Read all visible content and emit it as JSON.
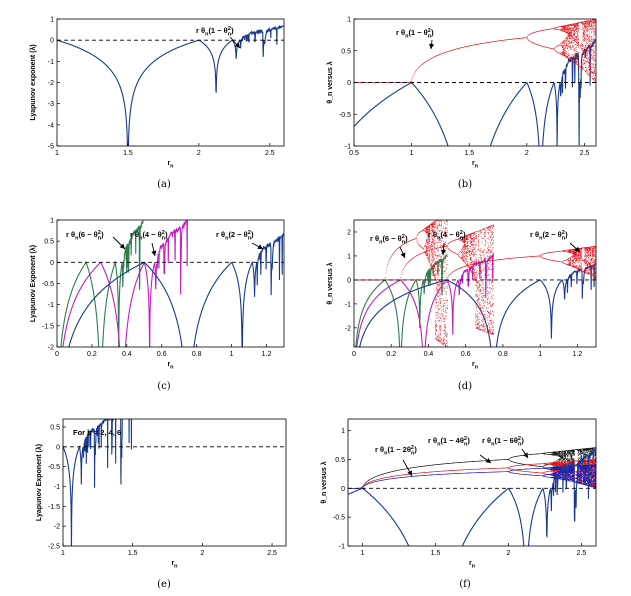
{
  "figure": {
    "panels": [
      {
        "id": "a",
        "caption": "(a)",
        "xlabel": "r",
        "xlabel_sub": "n",
        "ylabel": "Lyapunov exponent (λ)",
        "annotations": [
          {
            "base": "r θ",
            "sub": "n",
            "rest": "(1 − θ",
            "sup": "2",
            "sub2": "n",
            "end": ")"
          }
        ]
      },
      {
        "id": "b",
        "caption": "(b)",
        "xlabel": "r",
        "xlabel_sub": "n",
        "ylabel": "θ_n versus λ",
        "annotations": [
          {
            "base": "r θ",
            "sub": "n",
            "rest": "(1 − θ",
            "sup": "2",
            "sub2": "n",
            "end": ")"
          }
        ]
      },
      {
        "id": "c",
        "caption": "(c)",
        "xlabel": "r",
        "xlabel_sub": "n",
        "ylabel": "Lyapunov Exponent (λ)",
        "annotations": [
          {
            "base": "r θ",
            "sub": "n",
            "rest": "(6 − θ",
            "sup": "2",
            "sub2": "n",
            "end": ")"
          },
          {
            "base": "r θ",
            "sub": "n",
            "rest": "(4 − θ",
            "sup": "2",
            "sub2": "n",
            "end": ")"
          },
          {
            "base": "r θ",
            "sub": "n",
            "rest": "(2 − θ",
            "sup": "2",
            "sub2": "n",
            "end": ")"
          }
        ]
      },
      {
        "id": "d",
        "caption": "(d)",
        "xlabel": "r",
        "xlabel_sub": "n",
        "ylabel": "θ_n versus λ",
        "annotations": [
          {
            "base": "r θ",
            "sub": "n",
            "rest": "(6 − θ",
            "sup": "2",
            "sub2": "n",
            "end": ")"
          },
          {
            "base": "r θ",
            "sub": "n",
            "rest": "(4 − θ",
            "sup": "2",
            "sub2": "n",
            "end": ")"
          },
          {
            "base": "r θ",
            "sub": "n",
            "rest": "(2 − θ",
            "sup": "2",
            "sub2": "n",
            "end": ")"
          }
        ]
      },
      {
        "id": "e",
        "caption": "(e)",
        "xlabel": "r",
        "xlabel_sub": "n",
        "ylabel": "Lyapunov Exponent (λ)",
        "note": "For b = 2, 4, 6",
        "annotations": []
      },
      {
        "id": "f",
        "caption": "(f)",
        "xlabel": "r",
        "xlabel_sub": "n",
        "ylabel": "θ_n versus λ",
        "annotations": [
          {
            "base": "r θ",
            "sub": "n",
            "rest": "(1 − 2θ",
            "sup": "2",
            "sub2": "n",
            "end": ")"
          },
          {
            "base": "r θ",
            "sub": "n",
            "rest": "(1 − 4θ",
            "sup": "2",
            "sub2": "n",
            "end": ")"
          },
          {
            "base": "r θ",
            "sub": "n",
            "rest": "(1 − 6θ",
            "sup": "2",
            "sub2": "n",
            "end": ")"
          }
        ]
      }
    ]
  },
  "chart_data": [
    {
      "panel": "a",
      "type": "line",
      "xlim": [
        1,
        2.6
      ],
      "ylim": [
        -5,
        1
      ],
      "xticks": [
        "1",
        "1.5",
        "2",
        "2.5"
      ],
      "xtick_values": [
        1,
        1.5,
        2,
        2.5
      ],
      "yticks": [
        "1",
        "0",
        "-1",
        "-2",
        "-3",
        "-4",
        "-5"
      ],
      "ytick_values": [
        1,
        0,
        -1,
        -2,
        -3,
        -4,
        -5
      ],
      "reference_line": {
        "y": 0,
        "style": "dashed"
      },
      "series": [
        {
          "map": "r θ(1 − θ²)",
          "b": 1,
          "c": 1,
          "color": "#1a3a8f",
          "kind": "lyapunov"
        }
      ]
    },
    {
      "panel": "b",
      "type": "line",
      "xlim": [
        0.5,
        2.6
      ],
      "ylim": [
        -1,
        1
      ],
      "xticks": [
        "0.5",
        "1",
        "1.5",
        "2",
        "2.5"
      ],
      "xtick_values": [
        0.5,
        1,
        1.5,
        2,
        2.5
      ],
      "yticks": [
        "1",
        "0.5",
        "0",
        "-0.5",
        "-1"
      ],
      "ytick_values": [
        1,
        0.5,
        0,
        -0.5,
        -1
      ],
      "reference_line": {
        "y": 0,
        "style": "dashed"
      },
      "series": [
        {
          "map": "r θ(1 − θ²)",
          "b": 1,
          "c": 1,
          "color": "#1a3a8f",
          "kind": "lyapunov"
        },
        {
          "map": "r θ(1 − θ²)",
          "b": 1,
          "c": 1,
          "color": "#e8101a",
          "kind": "bifurcation"
        }
      ]
    },
    {
      "panel": "c",
      "type": "line",
      "xlim": [
        0,
        1.3
      ],
      "ylim": [
        -2,
        1
      ],
      "xticks": [
        "0",
        "0.2",
        "0.4",
        "0.6",
        "0.8",
        "1",
        "1.2"
      ],
      "xtick_values": [
        0,
        0.2,
        0.4,
        0.6,
        0.8,
        1,
        1.2
      ],
      "yticks": [
        "1",
        "0.5",
        "0",
        "-0.5",
        "-1",
        "-1.5",
        "-2"
      ],
      "ytick_values": [
        1,
        0.5,
        0,
        -0.5,
        -1,
        -1.5,
        -2
      ],
      "reference_line": {
        "y": 0,
        "style": "dashed"
      },
      "series": [
        {
          "map": "r θ(6 − θ²)",
          "b": 6,
          "c": 1,
          "color": "#2e7d4f",
          "kind": "lyapunov"
        },
        {
          "map": "r θ(4 − θ²)",
          "b": 4,
          "c": 1,
          "color": "#c21ec2",
          "kind": "lyapunov"
        },
        {
          "map": "r θ(2 − θ²)",
          "b": 2,
          "c": 1,
          "color": "#1a3a8f",
          "kind": "lyapunov"
        }
      ]
    },
    {
      "panel": "d",
      "type": "line",
      "xlim": [
        0,
        1.3
      ],
      "ylim": [
        -2.8,
        2.5
      ],
      "xticks": [
        "0",
        "0.2",
        "0.4",
        "0.6",
        "0.8",
        "1",
        "1.2"
      ],
      "xtick_values": [
        0,
        0.2,
        0.4,
        0.6,
        0.8,
        1,
        1.2
      ],
      "yticks": [
        "2",
        "1",
        "0",
        "-1",
        "-2"
      ],
      "ytick_values": [
        2,
        1,
        0,
        -1,
        -2
      ],
      "reference_line": {
        "y": 0,
        "style": "dashed"
      },
      "series": [
        {
          "map": "r θ(6 − θ²)",
          "b": 6,
          "c": 1,
          "color": "#2e7d4f",
          "kind": "lyapunov"
        },
        {
          "map": "r θ(4 − θ²)",
          "b": 4,
          "c": 1,
          "color": "#c21ec2",
          "kind": "lyapunov"
        },
        {
          "map": "r θ(2 − θ²)",
          "b": 2,
          "c": 1,
          "color": "#1a3a8f",
          "kind": "lyapunov"
        },
        {
          "map": "r θ(6 − θ²)",
          "b": 6,
          "c": 1,
          "color": "#e8101a",
          "kind": "bifurcation"
        },
        {
          "map": "r θ(4 − θ²)",
          "b": 4,
          "c": 1,
          "color": "#e8101a",
          "kind": "bifurcation"
        },
        {
          "map": "r θ(2 − θ²)",
          "b": 2,
          "c": 1,
          "color": "#e8101a",
          "kind": "bifurcation"
        }
      ]
    },
    {
      "panel": "e",
      "type": "scatter",
      "xlim": [
        1,
        2.6
      ],
      "ylim": [
        -2.5,
        0.7
      ],
      "xticks": [
        "1",
        "1.5",
        "2",
        "2.5"
      ],
      "xtick_values": [
        1,
        1.5,
        2,
        2.5
      ],
      "yticks": [
        "0.5",
        "0",
        "-0.5",
        "-1",
        "-1.5",
        "-2",
        "-2.5"
      ],
      "ytick_values": [
        0.5,
        0,
        -0.5,
        -1,
        -1.5,
        -2,
        -2.5
      ],
      "reference_line": {
        "y": 0,
        "style": "dashed"
      },
      "series": [
        {
          "map": "r θ(b − θ²)",
          "b": 2,
          "c": 1,
          "color": "#1a3a8f",
          "kind": "lyapunov"
        }
      ]
    },
    {
      "panel": "f",
      "type": "scatter",
      "xlim": [
        0.9,
        2.6
      ],
      "ylim": [
        -1,
        1.2
      ],
      "xticks": [
        "1",
        "1.5",
        "2",
        "2.5"
      ],
      "xtick_values": [
        1,
        1.5,
        2,
        2.5
      ],
      "yticks": [
        "1",
        "0.5",
        "0",
        "-0.5",
        "-1"
      ],
      "ytick_values": [
        1,
        0.5,
        0,
        -0.5,
        -1
      ],
      "reference_line": {
        "y": 0,
        "style": "dashed"
      },
      "series": [
        {
          "map": "r θ(1 − 2θ²)",
          "b": 1,
          "c": 2,
          "color": "#111111",
          "kind": "bifurcation"
        },
        {
          "map": "r θ(1 − 4θ²)",
          "b": 1,
          "c": 4,
          "color": "#e8101a",
          "kind": "bifurcation"
        },
        {
          "map": "r θ(1 − 6θ²)",
          "b": 1,
          "c": 6,
          "color": "#1515d0",
          "kind": "bifurcation"
        },
        {
          "map": "r θ(1 − 2θ²)",
          "b": 1,
          "c": 2,
          "color": "#1a3a8f",
          "kind": "lyapunov"
        }
      ]
    }
  ]
}
